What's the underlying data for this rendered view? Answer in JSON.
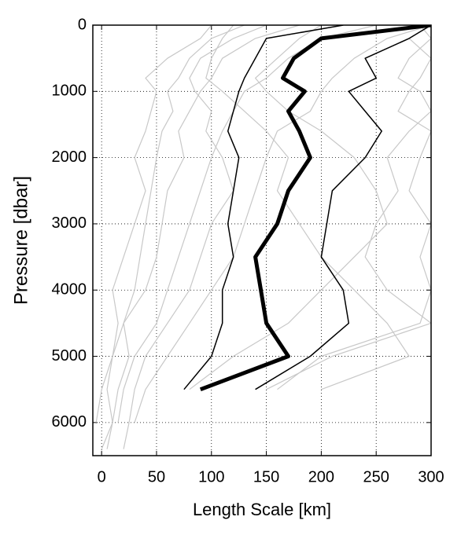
{
  "chart_data": {
    "type": "line",
    "xlabel": "Length Scale [km]",
    "ylabel": "Pressure [dbar]",
    "xlim": [
      -8,
      300
    ],
    "xticks": [
      0,
      50,
      100,
      150,
      200,
      250,
      300
    ],
    "ylim": [
      6500,
      0
    ],
    "yticks": [
      0,
      1000,
      2000,
      3000,
      4000,
      5000,
      6000
    ],
    "grid": true,
    "y": [
      0,
      200,
      500,
      800,
      1000,
      1300,
      1600,
      2000,
      2500,
      3000,
      3500,
      4000,
      4500,
      5000,
      5500,
      6000,
      6400
    ],
    "series": [
      {
        "color": "#c8c8c8",
        "width": 1.2,
        "values": [
          100,
          90,
          60,
          40,
          50,
          45,
          40,
          30,
          40,
          30,
          20,
          10,
          15,
          10,
          0,
          -5,
          null
        ]
      },
      {
        "color": "#c8c8c8",
        "width": 1.2,
        "values": [
          180,
          140,
          110,
          100,
          90,
          80,
          70,
          75,
          60,
          55,
          50,
          40,
          20,
          10,
          5,
          10,
          5
        ]
      },
      {
        "color": "#c8c8c8",
        "width": 1.2,
        "values": [
          250,
          200,
          170,
          150,
          130,
          120,
          110,
          100,
          90,
          80,
          70,
          60,
          50,
          30,
          20,
          15,
          null
        ]
      },
      {
        "color": "#c8c8c8",
        "width": 1.2,
        "values": [
          300,
          260,
          230,
          210,
          200,
          190,
          160,
          150,
          140,
          130,
          120,
          100,
          80,
          60,
          40,
          30,
          null
        ]
      },
      {
        "color": "#c8c8c8",
        "width": 1.2,
        "values": [
          120,
          110,
          100,
          95,
          110,
          130,
          150,
          170,
          160,
          180,
          200,
          230,
          260,
          280,
          200,
          null,
          null
        ]
      },
      {
        "color": "#c8c8c8",
        "width": 1.2,
        "values": [
          290,
          300,
          280,
          270,
          290,
          300,
          280,
          260,
          270,
          250,
          240,
          260,
          300,
          210,
          150,
          null,
          null
        ]
      },
      {
        "color": "#c8c8c8",
        "width": 1.2,
        "values": [
          150,
          120,
          90,
          80,
          85,
          100,
          95,
          110,
          120,
          100,
          90,
          80,
          60,
          40,
          30,
          25,
          20
        ]
      },
      {
        "color": "#c8c8c8",
        "width": 1.2,
        "values": [
          200,
          180,
          160,
          140,
          150,
          170,
          200,
          230,
          250,
          260,
          230,
          200,
          170,
          120,
          80,
          null,
          null
        ]
      },
      {
        "color": "#c8c8c8",
        "width": 1.2,
        "values": [
          130,
          100,
          80,
          70,
          60,
          65,
          55,
          50,
          45,
          40,
          35,
          30,
          20,
          25,
          15,
          10,
          0
        ]
      },
      {
        "color": "#c8c8c8",
        "width": 1.2,
        "values": [
          300,
          280,
          300,
          290,
          280,
          270,
          300,
          290,
          280,
          300,
          290,
          300,
          290,
          200,
          160,
          null,
          null
        ]
      },
      {
        "color": "#000000",
        "width": 1.5,
        "values": [
          220,
          150,
          140,
          130,
          125,
          120,
          115,
          125,
          120,
          115,
          120,
          110,
          110,
          100,
          75,
          null,
          null
        ]
      },
      {
        "color": "#000000",
        "width": 1.5,
        "values": [
          300,
          280,
          240,
          250,
          225,
          240,
          255,
          240,
          210,
          205,
          200,
          220,
          225,
          190,
          140,
          null,
          null
        ]
      },
      {
        "color": "#000000",
        "width": 5,
        "values": [
          300,
          200,
          175,
          165,
          185,
          170,
          180,
          190,
          170,
          160,
          140,
          145,
          150,
          170,
          90,
          null,
          null
        ]
      }
    ]
  }
}
